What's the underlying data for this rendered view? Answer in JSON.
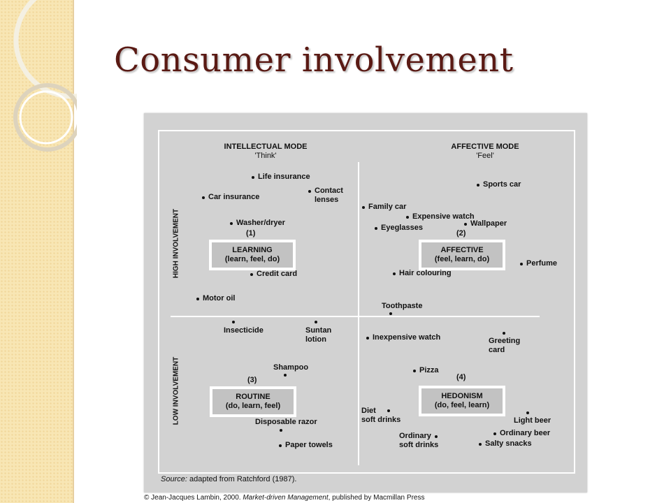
{
  "slide": {
    "title": "Consumer involvement"
  },
  "diagram": {
    "modes": {
      "intellectual": {
        "name": "INTELLECTUAL MODE",
        "sub": "'Think'"
      },
      "affective": {
        "name": "AFFECTIVE MODE",
        "sub": "'Feel'"
      }
    },
    "axes": {
      "high": "HIGH INVOLVEMENT",
      "low": "LOW INVOLVEMENT"
    },
    "quadrants": [
      {
        "number": "(1)",
        "name": "LEARNING",
        "sequence": "(learn, feel, do)"
      },
      {
        "number": "(2)",
        "name": "AFFECTIVE",
        "sequence": "(feel, learn, do)"
      },
      {
        "number": "(3)",
        "name": "ROUTINE",
        "sequence": "(do, learn, feel)"
      },
      {
        "number": "(4)",
        "name": "HEDONISM",
        "sequence": "(do, feel, learn)"
      }
    ],
    "items": {
      "life_insurance": "Life insurance",
      "car_insurance": "Car insurance",
      "contact_lenses": [
        "Contact",
        "lenses"
      ],
      "washer_dryer": "Washer/dryer",
      "credit_card": "Credit card",
      "motor_oil": "Motor oil",
      "sports_car": "Sports car",
      "family_car": "Family car",
      "expensive_watch": "Expensive watch",
      "wallpaper": "Wallpaper",
      "eyeglasses": "Eyeglasses",
      "perfume": "Perfume",
      "hair_colouring": "Hair colouring",
      "toothpaste": "Toothpaste",
      "insecticide": "Insecticide",
      "suntan_lotion": [
        "Suntan",
        "lotion"
      ],
      "shampoo": "Shampoo",
      "disposable_razor": "Disposable razor",
      "paper_towels": "Paper towels",
      "inexpensive_watch": "Inexpensive watch",
      "greeting_card": [
        "Greeting",
        "card"
      ],
      "pizza": "Pizza",
      "diet_soft_drinks": [
        "Diet",
        "soft drinks"
      ],
      "light_beer": "Light beer",
      "ordinary_beer": "Ordinary beer",
      "ordinary_soft_drinks": [
        "Ordinary",
        "soft drinks"
      ],
      "salty_snacks": "Salty snacks"
    },
    "source_label": "Source:",
    "source_text": " adapted from Ratchford (1987)."
  },
  "footer": {
    "copyright_prefix": "© Jean-Jacques Lambin, 2000. ",
    "copyright_book": "Market-driven Management",
    "copyright_suffix": ", published by Macmillan Press"
  }
}
